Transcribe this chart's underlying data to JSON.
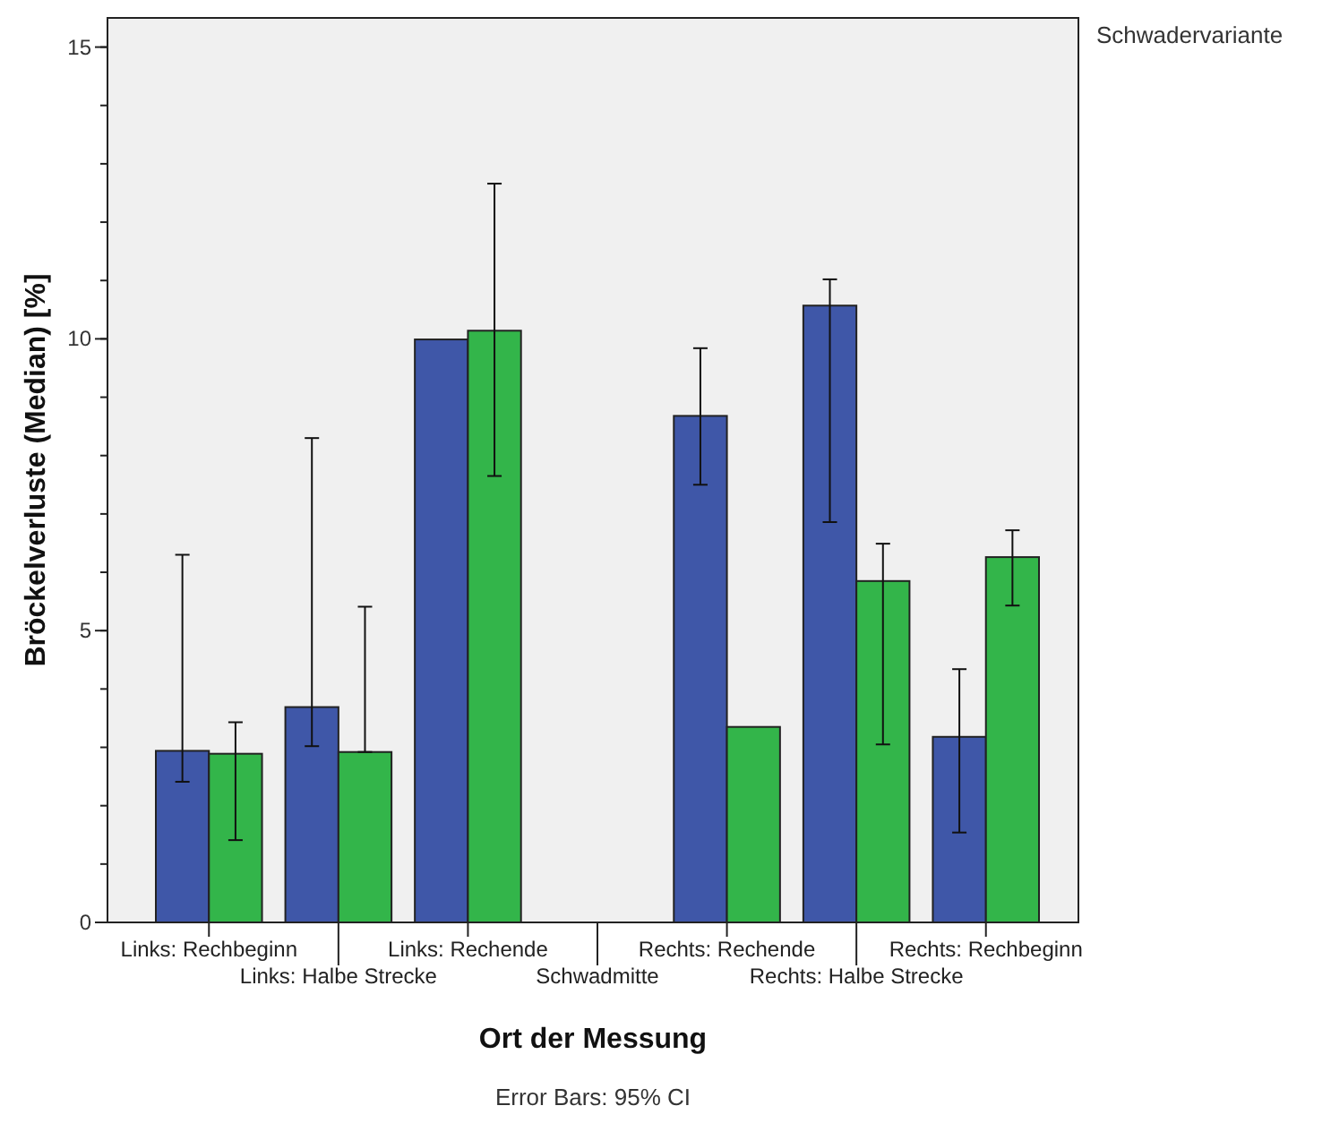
{
  "chart_data": {
    "type": "bar",
    "xlabel": "Ort der Messung",
    "ylabel": "Bröckelverluste (Median) [%]",
    "legend_title": "Schwadervariante",
    "annotations": [
      "Error Bars: 95% CI"
    ],
    "categories": [
      "Links: Rechbeginn",
      "Links: Halbe Strecke",
      "Links: Rechende",
      "Schwadmitte",
      "Rechts: Rechende",
      "Rechts: Halbe Strecke",
      "Rechts: Rechbeginn"
    ],
    "series": [
      {
        "color": "#3f57a8",
        "values": [
          2.94,
          3.69,
          9.99,
          null,
          8.68,
          10.57,
          3.18
        ],
        "errors": [
          [
            2.41,
            6.3
          ],
          [
            3.02,
            8.3
          ],
          null,
          null,
          [
            7.5,
            9.84
          ],
          [
            6.86,
            11.02
          ],
          [
            1.54,
            4.34
          ]
        ]
      },
      {
        "color": "#33b54a",
        "values": [
          2.89,
          2.92,
          10.14,
          null,
          3.35,
          5.85,
          6.26
        ],
        "errors": [
          [
            1.41,
            3.43
          ],
          [
            2.92,
            5.41
          ],
          [
            7.65,
            12.66
          ],
          null,
          null,
          [
            3.05,
            6.49
          ],
          [
            5.43,
            6.72
          ]
        ]
      }
    ],
    "ylim": [
      0,
      15.5
    ],
    "yticks": [
      0,
      5,
      10,
      15
    ],
    "grid": false
  }
}
